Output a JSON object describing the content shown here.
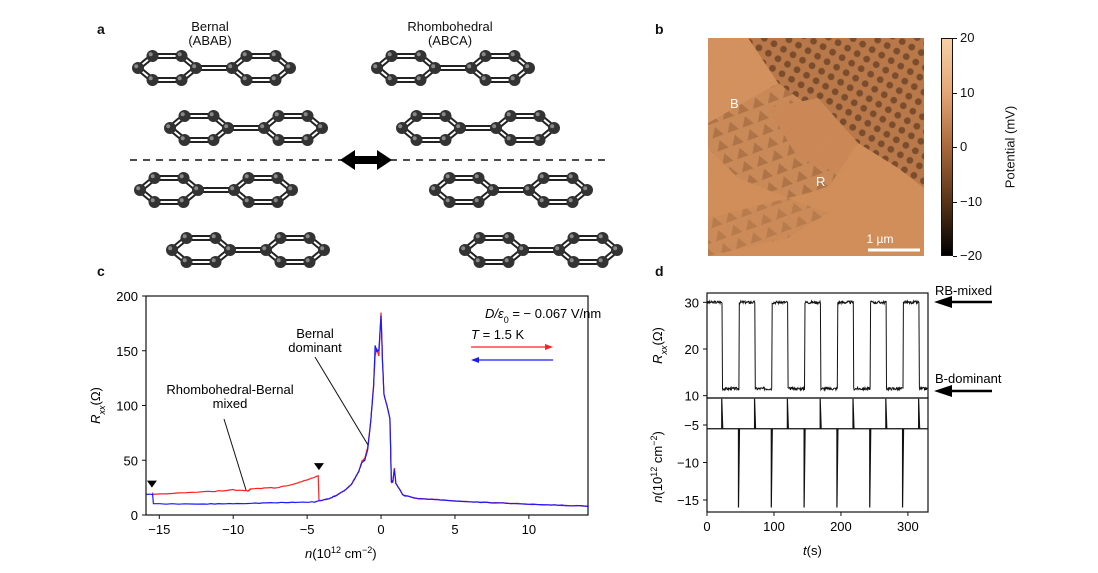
{
  "panels": {
    "a": {
      "label": "a",
      "bernal_title": "Bernal",
      "bernal_stacking": "(ABAB)",
      "rhombo_title": "Rhombohedral",
      "rhombo_stacking": "(ABCA)",
      "icon": "double-arrow-icon"
    },
    "b": {
      "label": "b",
      "marker_b": "B",
      "marker_r": "R",
      "scalebar": "1 µm",
      "colorbar_label": "Potential (mV)",
      "colorbar_ticks": [
        "20",
        "10",
        "0",
        "−10",
        "−20"
      ],
      "colorbar_range": [
        -20,
        20
      ],
      "colormap": [
        "#000000",
        "#5a3418",
        "#a8683a",
        "#e3a676",
        "#f7cfa6"
      ]
    },
    "c": {
      "label": "c"
    },
    "d": {
      "label": "d"
    }
  },
  "chart_data": [
    {
      "type": "line",
      "panel": "c",
      "xlabel_var": "n",
      "xlabel_unit": "(10",
      "xlabel_exp": "12",
      "xlabel_unit2": " cm",
      "xlabel_exp2": "−2",
      "xlabel_close": ")",
      "ylabel_var": "R",
      "ylabel_sub": "xx",
      "ylabel_unit": "(Ω)",
      "xlim": [
        -15.9,
        14
      ],
      "ylim": [
        0,
        200
      ],
      "xticks": [
        -15,
        -10,
        -5,
        0,
        5,
        10
      ],
      "xtick_labels": [
        "−15",
        "−10",
        "−5",
        "0",
        "5",
        "10"
      ],
      "yticks": [
        0,
        50,
        100,
        150,
        200
      ],
      "ytick_labels": [
        "0",
        "50",
        "100",
        "150",
        "200"
      ],
      "annotations": {
        "displacement_var": "D/ε",
        "displacement_sub": "0",
        "displacement_value": " = − 0.067 V/nm",
        "temp_var": "T",
        "temp_value": " = 1.5 K",
        "mixed_line1": "Rhombohedral-Bernal",
        "mixed_line2": "mixed",
        "bernal_line1": "Bernal",
        "bernal_line2": "dominant"
      },
      "series": [
        {
          "direction": "forward",
          "color": "#ff2020",
          "x": [
            -15.5,
            -15.4,
            -12,
            -10,
            -9,
            -8.8,
            -7,
            -6,
            -5,
            -4.25,
            -4.2,
            -3.5,
            -3,
            -2.5,
            -2,
            -1.5,
            -1.3,
            -1.1,
            -0.9,
            -0.7,
            -0.5,
            -0.4,
            -0.3,
            -0.15,
            0,
            0.1,
            0.2,
            0.4,
            0.6,
            0.7,
            0.8,
            0.9,
            1.0,
            1.5,
            2.5,
            4,
            6,
            8,
            10,
            12,
            14
          ],
          "y": [
            19,
            19,
            21,
            23,
            22,
            24,
            25,
            28,
            32,
            36,
            13,
            15,
            18,
            22,
            28,
            40,
            49,
            52,
            62,
            85,
            120,
            145,
            152,
            145,
            185,
            140,
            110,
            100,
            88,
            30,
            30,
            43,
            29,
            18,
            15,
            14,
            12,
            11,
            10,
            9,
            8
          ]
        },
        {
          "direction": "backward",
          "color": "#1a1aff",
          "x": [
            -15.9,
            -15.45,
            -15.4,
            -12,
            -10,
            -8,
            -6,
            -4.5,
            -3.5,
            -3,
            -2.5,
            -2,
            -1.5,
            -1.3,
            -1.1,
            -0.9,
            -0.7,
            -0.5,
            -0.4,
            -0.3,
            -0.15,
            0,
            0.1,
            0.2,
            0.4,
            0.6,
            0.7,
            0.8,
            0.9,
            1.0,
            1.5,
            2.5,
            4,
            6,
            8,
            10,
            12,
            14
          ],
          "y": [
            19,
            19,
            10,
            10,
            10.5,
            11,
            11.5,
            12,
            15,
            18,
            22,
            28,
            40,
            48,
            50,
            60,
            85,
            118,
            155,
            150,
            150,
            182,
            140,
            110,
            100,
            88,
            30,
            31,
            42,
            29,
            18,
            15,
            14,
            12,
            11,
            10,
            9,
            8
          ]
        }
      ],
      "markers": [
        {
          "x": -15.5,
          "shape": "triangle-down"
        },
        {
          "x": -4.2,
          "shape": "triangle-down"
        }
      ]
    },
    {
      "type": "line",
      "panel": "d-top",
      "ylabel_var": "R",
      "ylabel_sub": "xx",
      "ylabel_unit": "(Ω)",
      "xlim": [
        0,
        330
      ],
      "ylim": [
        9.5,
        32
      ],
      "yticks": [
        10,
        20,
        30
      ],
      "ytick_labels": [
        "10",
        "20",
        "30"
      ],
      "levels": {
        "high": 30,
        "low": 11.5
      },
      "period_s": 49,
      "first_drop_s": 23,
      "rise_offset_s": 25,
      "annotations": {
        "rb_mixed": "RB-mixed",
        "b_dominant": "B-dominant"
      }
    },
    {
      "type": "line",
      "panel": "d-bottom",
      "xlabel_var": "t",
      "xlabel_unit": "(s)",
      "ylabel_var": "n",
      "ylabel_unit": "(10",
      "ylabel_exp": "12",
      "ylabel_unit2": " cm",
      "ylabel_exp2": "−2",
      "ylabel_close": ")",
      "xlim": [
        0,
        330
      ],
      "ylim": [
        -16.6,
        -1.4
      ],
      "xticks": [
        0,
        100,
        200,
        300
      ],
      "xtick_labels": [
        "0",
        "100",
        "200",
        "300"
      ],
      "yticks": [
        -5,
        -10,
        -15
      ],
      "ytick_labels": [
        "−5",
        "−10",
        "−15"
      ],
      "baseline": -5.5,
      "up_pulse": -1.5,
      "down_pulse": -16
    }
  ]
}
